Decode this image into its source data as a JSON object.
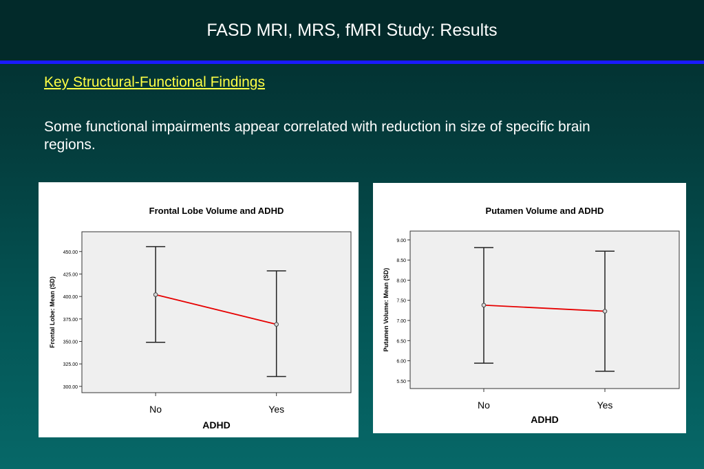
{
  "slide": {
    "title": "FASD MRI, MRS, fMRI Study: Results",
    "subheading": "Key Structural-Functional Findings",
    "body": "Some functional impairments appear correlated with reduction in size of specific brain regions."
  },
  "colors": {
    "background": "#045454",
    "title_bar": "#022a2a",
    "rule": "#1a1aff",
    "subheading": "#ffff44",
    "plot_area": "#efefef",
    "mean_line": "#e60000"
  },
  "chart_data": [
    {
      "type": "line",
      "title": "Frontal Lobe Volume  and ADHD",
      "xlabel": "ADHD",
      "ylabel": "Frontal Lobe: Mean (SD)",
      "categories": [
        "No",
        "Yes"
      ],
      "values": [
        402.0,
        369.0
      ],
      "error_low": [
        349.0,
        311.0
      ],
      "error_high": [
        455.5,
        428.5
      ],
      "yticks": [
        "300.00",
        "325.00",
        "350.00",
        "375.00",
        "400.00",
        "425.00",
        "450.00"
      ],
      "ylim": [
        293,
        472
      ],
      "grid": false
    },
    {
      "type": "line",
      "title": "Putamen Volume  and ADHD",
      "xlabel": "ADHD",
      "ylabel": "Putamen Volume: Mean (SD)",
      "categories": [
        "No",
        "Yes"
      ],
      "values": [
        7.38,
        7.23
      ],
      "error_low": [
        5.94,
        5.74
      ],
      "error_high": [
        8.81,
        8.72
      ],
      "yticks": [
        "5.50",
        "6.00",
        "6.50",
        "7.00",
        "7.50",
        "8.00",
        "8.50",
        "9.00"
      ],
      "ylim": [
        5.31,
        9.22
      ],
      "grid": false
    }
  ]
}
